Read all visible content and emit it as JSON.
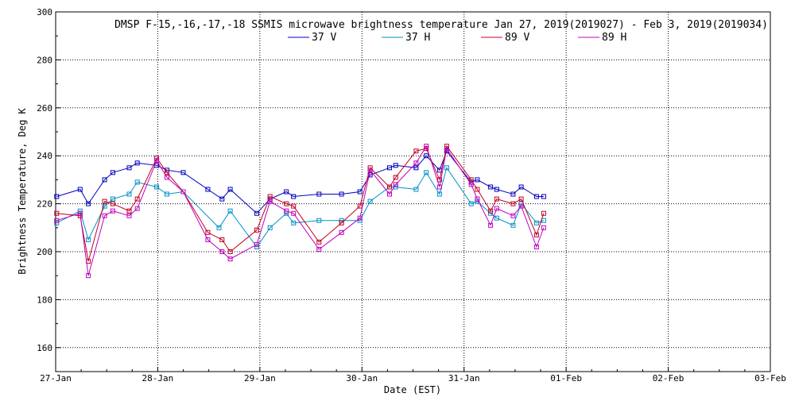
{
  "chart_data": {
    "type": "line",
    "title": "DMSP F-15,-16,-17,-18 SSMIS microwave brightness temperature Jan 27, 2019(2019027) - Feb  3, 2019(2019034)",
    "xlabel": "Date (EST)",
    "ylabel": "Brightness Temperature, Deg K",
    "xlim": [
      0,
      7
    ],
    "ylim": [
      150,
      300
    ],
    "x_ticks": [
      {
        "value": 0,
        "label": "27-Jan"
      },
      {
        "value": 1,
        "label": "28-Jan"
      },
      {
        "value": 2,
        "label": "29-Jan"
      },
      {
        "value": 3,
        "label": "30-Jan"
      },
      {
        "value": 4,
        "label": "31-Jan"
      },
      {
        "value": 5,
        "label": "01-Feb"
      },
      {
        "value": 6,
        "label": "02-Feb"
      },
      {
        "value": 7,
        "label": "03-Feb"
      }
    ],
    "y_ticks": [
      {
        "value": 160,
        "label": "160"
      },
      {
        "value": 180,
        "label": "180"
      },
      {
        "value": 200,
        "label": "200"
      },
      {
        "value": 220,
        "label": "220"
      },
      {
        "value": 240,
        "label": "240"
      },
      {
        "value": 260,
        "label": "260"
      },
      {
        "value": 280,
        "label": "280"
      },
      {
        "value": 300,
        "label": "300"
      }
    ],
    "grid": true,
    "legend_position": "top",
    "series": [
      {
        "name": "37 V",
        "color": "#0000c0",
        "x": [
          0.01,
          0.24,
          0.32,
          0.48,
          0.56,
          0.72,
          0.8,
          0.99,
          1.09,
          1.25,
          1.49,
          1.63,
          1.71,
          1.97,
          2.1,
          2.26,
          2.33,
          2.58,
          2.8,
          2.98,
          3.08,
          3.27,
          3.33,
          3.53,
          3.63,
          3.76,
          3.83,
          4.07,
          4.13,
          4.26,
          4.32,
          4.48,
          4.56,
          4.71,
          4.78
        ],
        "y": [
          223,
          226,
          220,
          230,
          233,
          235,
          237,
          236,
          234,
          233,
          226,
          222,
          226,
          216,
          222,
          225,
          223,
          224,
          224,
          225,
          232,
          235,
          236,
          235,
          240,
          234,
          242,
          229,
          230,
          227,
          226,
          224,
          227,
          223,
          223
        ]
      },
      {
        "name": "37 H",
        "color": "#0090c8",
        "x": [
          0.01,
          0.24,
          0.32,
          0.48,
          0.56,
          0.72,
          0.8,
          0.99,
          1.09,
          1.25,
          1.6,
          1.71,
          1.97,
          2.1,
          2.26,
          2.33,
          2.58,
          2.8,
          2.98,
          3.08,
          3.27,
          3.33,
          3.53,
          3.63,
          3.76,
          3.83,
          4.07,
          4.13,
          4.26,
          4.32,
          4.48,
          4.56,
          4.71,
          4.78
        ],
        "y": [
          212,
          217,
          205,
          219,
          222,
          224,
          229,
          227,
          224,
          225,
          210,
          217,
          202,
          210,
          216,
          212,
          213,
          213,
          213,
          221,
          227,
          227,
          226,
          233,
          224,
          235,
          220,
          221,
          216,
          214,
          211,
          220,
          212,
          213
        ]
      },
      {
        "name": "89 V",
        "color": "#c00020",
        "x": [
          0.01,
          0.24,
          0.32,
          0.48,
          0.56,
          0.72,
          0.8,
          0.99,
          1.09,
          1.25,
          1.49,
          1.63,
          1.71,
          1.97,
          2.1,
          2.26,
          2.33,
          2.58,
          2.8,
          2.98,
          3.08,
          3.27,
          3.33,
          3.53,
          3.63,
          3.76,
          3.83,
          4.07,
          4.13,
          4.26,
          4.32,
          4.48,
          4.56,
          4.71,
          4.78
        ],
        "y": [
          216,
          215,
          196,
          221,
          220,
          217,
          222,
          239,
          233,
          225,
          208,
          205,
          200,
          209,
          223,
          220,
          219,
          204,
          212,
          219,
          235,
          227,
          231,
          242,
          243,
          230,
          244,
          230,
          226,
          217,
          222,
          220,
          222,
          207,
          216
        ]
      },
      {
        "name": "89 H",
        "color": "#c000c0",
        "x": [
          0.01,
          0.24,
          0.32,
          0.48,
          0.56,
          0.72,
          0.8,
          0.99,
          1.09,
          1.25,
          1.49,
          1.63,
          1.71,
          1.97,
          2.1,
          2.26,
          2.33,
          2.58,
          2.8,
          2.98,
          3.08,
          3.27,
          3.33,
          3.53,
          3.63,
          3.76,
          3.83,
          4.07,
          4.13,
          4.26,
          4.32,
          4.48,
          4.56,
          4.71,
          4.78
        ],
        "y": [
          213,
          216,
          190,
          215,
          217,
          215,
          218,
          238,
          231,
          225,
          205,
          200,
          197,
          203,
          221,
          217,
          216,
          201,
          208,
          214,
          234,
          224,
          228,
          237,
          244,
          227,
          243,
          228,
          222,
          211,
          218,
          215,
          219,
          202,
          210
        ]
      }
    ]
  }
}
